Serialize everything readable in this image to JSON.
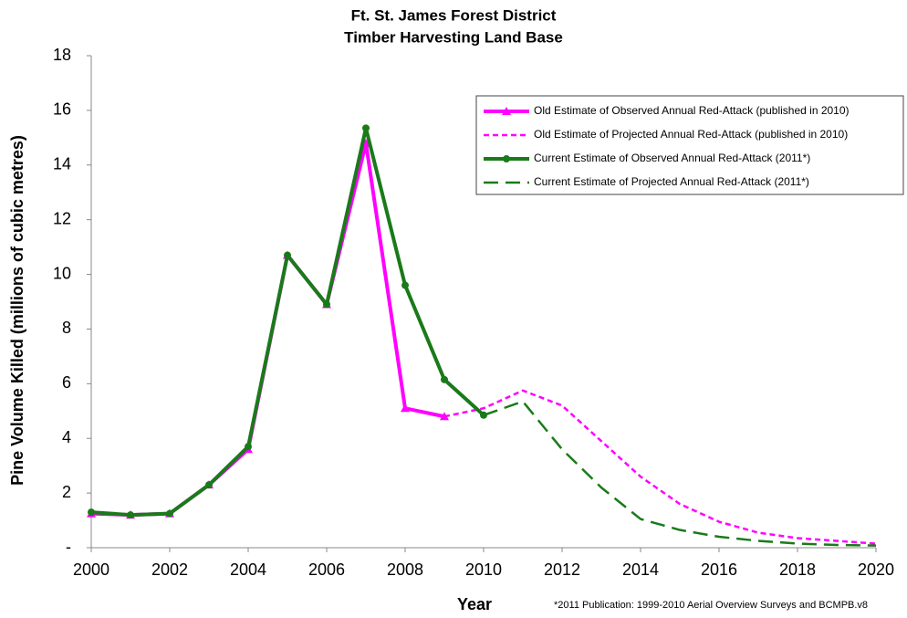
{
  "chart_data": {
    "type": "line",
    "title": [
      "Ft. St. James Forest District",
      "Timber Harvesting Land Base"
    ],
    "x_label": "Year",
    "y_label": "Pine Volume Killed (millions of cubic metres)",
    "footnote": "*2011 Publication: 1999-2010 Aerial Overview Surveys and BCMPB.v8",
    "x": [
      2000,
      2001,
      2002,
      2003,
      2004,
      2005,
      2006,
      2007,
      2008,
      2009,
      2010,
      2011,
      2012,
      2013,
      2014,
      2015,
      2016,
      2017,
      2018,
      2019,
      2020
    ],
    "xlim": [
      2000,
      2020
    ],
    "xticks": [
      2000,
      2002,
      2004,
      2006,
      2008,
      2010,
      2012,
      2014,
      2016,
      2018,
      2020
    ],
    "ylim": [
      0,
      18
    ],
    "yticks": [
      {
        "value": 0,
        "label": "-"
      },
      2,
      4,
      6,
      8,
      10,
      12,
      14,
      16,
      18
    ],
    "grid": false,
    "legend": "upper right",
    "series": [
      {
        "name": "Old Estimate of Observed Annual Red-Attack (published in 2010)",
        "color": "#ff00ff",
        "dash": false,
        "marker": "triangle",
        "values": [
          1.25,
          1.2,
          1.25,
          2.3,
          3.6,
          10.7,
          8.9,
          14.8,
          5.1,
          4.8,
          null,
          null,
          null,
          null,
          null,
          null,
          null,
          null,
          null,
          null,
          null
        ]
      },
      {
        "name": "Old Estimate of Projected Annual Red-Attack (published in 2010)",
        "color": "#ff00ff",
        "dash": true,
        "marker": "none",
        "values": [
          null,
          null,
          null,
          null,
          null,
          null,
          null,
          null,
          null,
          4.8,
          5.1,
          5.75,
          5.2,
          3.9,
          2.6,
          1.6,
          0.95,
          0.55,
          0.35,
          0.25,
          0.15
        ]
      },
      {
        "name": "Current Estimate of Observed Annual Red-Attack (2011*)",
        "color": "#1a7a1a",
        "dash": false,
        "marker": "circle",
        "values": [
          1.3,
          1.2,
          1.25,
          2.3,
          3.7,
          10.7,
          8.9,
          15.35,
          9.6,
          6.15,
          4.85,
          null,
          null,
          null,
          null,
          null,
          null,
          null,
          null,
          null,
          null
        ]
      },
      {
        "name": "Current Estimate of Projected Annual Red-Attack (2011*)",
        "color": "#1a7a1a",
        "dash": true,
        "marker": "none",
        "values": [
          null,
          null,
          null,
          null,
          null,
          null,
          null,
          null,
          null,
          null,
          4.85,
          5.35,
          3.6,
          2.2,
          1.05,
          0.65,
          0.4,
          0.25,
          0.15,
          0.1,
          0.08
        ]
      }
    ]
  }
}
